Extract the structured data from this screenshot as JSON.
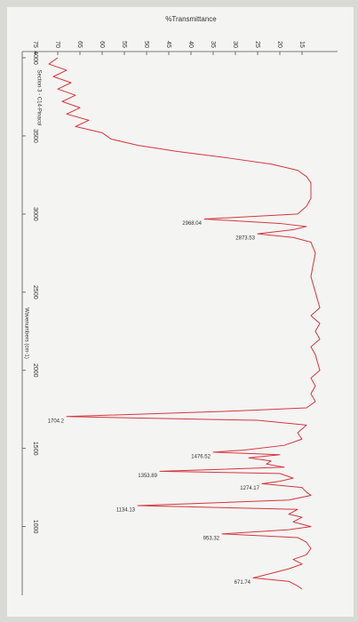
{
  "chart_data": {
    "type": "line",
    "title": "Section 3 - C14-Pinacol",
    "xlabel": "Wavenumbers (cm-1)",
    "ylabel": "%Transmittance",
    "x": [
      4000,
      3960,
      3920,
      3880,
      3840,
      3800,
      3760,
      3720,
      3680,
      3640,
      3600,
      3560,
      3520,
      3480,
      3440,
      3400,
      3360,
      3320,
      3280,
      3240,
      3200,
      3100,
      3050,
      3000,
      2968.04,
      2940,
      2920,
      2900,
      2873.53,
      2850,
      2820,
      2750,
      2600,
      2500,
      2400,
      2350,
      2300,
      2250,
      2200,
      2150,
      2100,
      2000,
      1950,
      1900,
      1850,
      1800,
      1760,
      1740,
      1704.2,
      1680,
      1650,
      1600,
      1560,
      1520,
      1490,
      1476.52,
      1460,
      1440,
      1420,
      1400,
      1380,
      1353.89,
      1340,
      1310,
      1290,
      1274.17,
      1250,
      1220,
      1200,
      1170,
      1134.13,
      1110,
      1080,
      1060,
      1030,
      1000,
      980,
      953.32,
      930,
      900,
      860,
      820,
      790,
      760,
      730,
      700,
      671.74,
      650,
      620,
      600
    ],
    "series": [
      {
        "color": "#d2373f",
        "values": [
          70,
          72,
          68,
          71,
          67,
          70,
          66,
          69,
          65,
          68,
          63,
          66,
          60,
          58,
          52,
          43,
          32,
          22,
          16,
          14,
          13,
          13,
          14,
          16,
          37,
          20,
          14,
          17,
          25,
          17,
          13,
          12,
          13,
          12,
          11,
          13,
          11,
          12,
          11,
          13,
          12,
          11,
          13,
          12,
          13,
          12,
          14,
          30,
          68,
          25,
          14,
          16,
          15,
          19,
          28,
          35,
          20,
          27,
          22,
          23,
          19,
          47,
          20,
          17,
          20,
          24,
          15,
          14,
          13,
          18,
          52,
          16,
          18,
          15,
          17,
          13,
          18,
          33,
          16,
          14,
          13,
          14,
          17,
          15,
          18,
          22,
          26,
          18,
          16,
          15
        ]
      }
    ],
    "peaks": {
      "x": [
        2968.04,
        2873.53,
        1704.2,
        1476.52,
        1353.89,
        1274.17,
        1134.13,
        953.32,
        671.74
      ],
      "y": [
        37,
        25,
        68,
        35,
        47,
        24,
        52,
        33,
        26
      ]
    },
    "xlim": [
      4000,
      600
    ],
    "xticks": [
      4000,
      3500,
      3000,
      2500,
      2000,
      1500,
      1000
    ],
    "ylim": [
      78,
      8
    ],
    "yticks": [
      75,
      70,
      65,
      60,
      55,
      50,
      45,
      40,
      35,
      30,
      25,
      20,
      15
    ]
  }
}
